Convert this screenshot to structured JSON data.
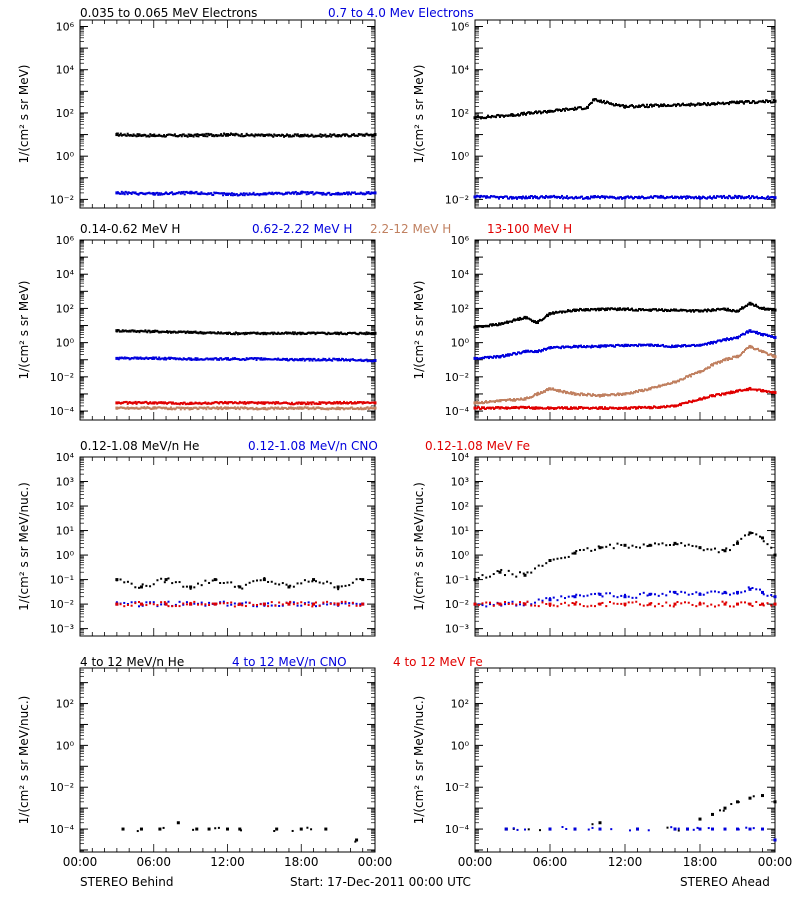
{
  "footer": {
    "left": "STEREO Behind",
    "center": "Start: 17-Dec-2011 00:00 UTC",
    "right": "STEREO Ahead"
  },
  "x_tick_labels": [
    "00:00",
    "06:00",
    "12:00",
    "18:00",
    "00:00"
  ],
  "colors": {
    "black": "#000000",
    "blue": "#0000dd",
    "brown": "#c08060",
    "red": "#e00000"
  },
  "chart_data": [
    {
      "type": "scatter",
      "panel": "electrons",
      "title_entries": [
        {
          "text": "0.035 to 0.065 MeV Electrons",
          "color": "black"
        },
        {
          "text": "0.7 to 4.0 Mev Electrons",
          "color": "blue"
        }
      ],
      "ylabel": "1/(cm² s sr MeV)",
      "yscale": "log",
      "ylim": [
        0.004,
        2000000
      ],
      "ytick_labels": [
        "10^-2",
        "10^0",
        "10^2",
        "10^4",
        "10^6"
      ],
      "xlim_hours": [
        0,
        24
      ],
      "behind": {
        "x_hours": [
          3,
          6,
          9,
          12,
          15,
          18,
          21,
          24
        ],
        "series": [
          {
            "name": "0.035 to 0.065 MeV Electrons",
            "color": "black",
            "values": [
              10,
              9,
              9,
              10,
              9,
              9,
              9,
              10
            ]
          },
          {
            "name": "0.7 to 4.0 Mev Electrons",
            "color": "blue",
            "values": [
              0.02,
              0.018,
              0.02,
              0.017,
              0.018,
              0.02,
              0.018,
              0.02
            ]
          }
        ]
      },
      "ahead": {
        "x_hours": [
          0,
          3,
          6,
          9,
          9.5,
          12,
          15,
          18,
          21,
          24
        ],
        "series": [
          {
            "name": "0.035 to 0.065 MeV Electrons",
            "color": "black",
            "values": [
              60,
              80,
              120,
              180,
              400,
              200,
              220,
              250,
              300,
              350
            ]
          },
          {
            "name": "0.7 to 4.0 Mev Electrons",
            "color": "blue",
            "values": [
              0.013,
              0.012,
              0.013,
              0.012,
              0.013,
              0.012,
              0.013,
              0.012,
              0.013,
              0.012
            ]
          }
        ]
      }
    },
    {
      "type": "scatter",
      "panel": "protons",
      "title_entries": [
        {
          "text": "0.14-0.62 MeV H",
          "color": "black"
        },
        {
          "text": "0.62-2.22 MeV H",
          "color": "blue"
        },
        {
          "text": "2.2-12 MeV H",
          "color": "brown"
        },
        {
          "text": "13-100 MeV H",
          "color": "red"
        }
      ],
      "ylabel": "1/(cm² s sr MeV)",
      "yscale": "log",
      "ylim": [
        3e-05,
        1000000
      ],
      "ytick_labels": [
        "10^-4",
        "10^-2",
        "10^0",
        "10^2",
        "10^4",
        "10^6"
      ],
      "xlim_hours": [
        0,
        24
      ],
      "behind": {
        "x_hours": [
          3,
          6,
          9,
          12,
          15,
          18,
          21,
          24
        ],
        "series": [
          {
            "name": "0.14-0.62 MeV H",
            "color": "black",
            "values": [
              5,
              4.5,
              4,
              3.5,
              3.5,
              3.5,
              3.5,
              3.5
            ]
          },
          {
            "name": "0.62-2.22 MeV H",
            "color": "blue",
            "values": [
              0.12,
              0.12,
              0.11,
              0.11,
              0.11,
              0.1,
              0.1,
              0.09
            ]
          },
          {
            "name": "2.2-12 MeV H",
            "color": "brown",
            "values": [
              0.00015,
              0.00015,
              0.00014,
              0.00015,
              0.00014,
              0.00015,
              0.00014,
              0.00015
            ]
          },
          {
            "name": "13-100 MeV H",
            "color": "red",
            "values": [
              0.0003,
              0.0003,
              0.00028,
              0.0003,
              0.0003,
              0.00028,
              0.0003,
              0.0003
            ]
          }
        ]
      },
      "ahead": {
        "x_hours": [
          0,
          2,
          4,
          5,
          6,
          8,
          10,
          12,
          14,
          16,
          18,
          19,
          20,
          21,
          22,
          23,
          24
        ],
        "series": [
          {
            "name": "0.14-0.62 MeV H",
            "color": "black",
            "values": [
              8,
              12,
              30,
              15,
              50,
              80,
              90,
              90,
              80,
              80,
              70,
              80,
              90,
              70,
              200,
              100,
              80
            ]
          },
          {
            "name": "0.62-2.22 MeV H",
            "color": "blue",
            "values": [
              0.12,
              0.15,
              0.3,
              0.3,
              0.5,
              0.6,
              0.6,
              0.7,
              0.7,
              0.6,
              0.7,
              1,
              1.5,
              2,
              5,
              3,
              2
            ]
          },
          {
            "name": "2.2-12 MeV H",
            "color": "brown",
            "values": [
              0.0003,
              0.0004,
              0.0005,
              0.001,
              0.002,
              0.001,
              0.0008,
              0.001,
              0.002,
              0.005,
              0.02,
              0.05,
              0.1,
              0.15,
              0.6,
              0.3,
              0.15
            ]
          },
          {
            "name": "13-100 MeV H",
            "color": "red",
            "values": [
              0.00015,
              0.00015,
              0.00016,
              0.00015,
              0.00015,
              0.00015,
              0.00015,
              0.00015,
              0.00016,
              0.0002,
              0.0005,
              0.0008,
              0.001,
              0.0015,
              0.002,
              0.0015,
              0.0012
            ]
          }
        ]
      }
    },
    {
      "type": "scatter",
      "panel": "heavy-ions-low",
      "title_entries": [
        {
          "text": "0.12-1.08 MeV/n He",
          "color": "black"
        },
        {
          "text": "0.12-1.08 MeV/n CNO",
          "color": "blue"
        },
        {
          "text": "0.12-1.08 MeV Fe",
          "color": "red"
        }
      ],
      "ylabel": "1/(cm² s sr MeV/nuc.)",
      "yscale": "log",
      "ylim": [
        0.0005,
        10000
      ],
      "ytick_labels": [
        "10^-3",
        "10^-2",
        "10^-1",
        "10^0",
        "10^1",
        "10^2",
        "10^3",
        "10^4"
      ],
      "xlim_hours": [
        0,
        24
      ],
      "behind": {
        "x_hours": [
          3,
          5,
          7,
          9,
          11,
          13,
          15,
          17,
          19,
          21,
          23
        ],
        "series": [
          {
            "name": "0.12-1.08 MeV/n He",
            "color": "black",
            "values": [
              0.1,
              0.05,
              0.1,
              0.05,
              0.1,
              0.05,
              0.1,
              0.05,
              0.1,
              0.05,
              0.1
            ]
          },
          {
            "name": "0.12-1.08 MeV/n CNO",
            "color": "blue",
            "values": [
              0.01,
              0.01,
              0.01,
              0.01,
              0.01,
              0.01,
              0.01,
              0.01,
              0.01,
              0.01,
              0.01
            ]
          },
          {
            "name": "0.12-1.08 MeV Fe",
            "color": "red",
            "values": [
              0.01,
              0.01,
              0.01,
              0.01,
              0.01,
              0.01,
              0.01,
              0.01,
              0.01,
              0.01,
              0.01
            ]
          }
        ]
      },
      "ahead": {
        "x_hours": [
          0,
          2,
          4,
          6,
          8,
          10,
          12,
          14,
          16,
          18,
          20,
          21,
          22,
          23,
          24
        ],
        "series": [
          {
            "name": "0.12-1.08 MeV/n He",
            "color": "black",
            "values": [
              0.1,
              0.2,
              0.15,
              0.6,
              1.2,
              2,
              2.5,
              2.5,
              3,
              2,
              1.5,
              3,
              8,
              5,
              1
            ]
          },
          {
            "name": "0.12-1.08 MeV/n CNO",
            "color": "blue",
            "values": [
              0.01,
              0.01,
              0.01,
              0.015,
              0.02,
              0.025,
              0.02,
              0.025,
              0.03,
              0.025,
              0.03,
              0.03,
              0.04,
              0.03,
              0.02
            ]
          },
          {
            "name": "0.12-1.08 MeV Fe",
            "color": "red",
            "values": [
              0.01,
              0.01,
              0.01,
              0.01,
              0.01,
              0.01,
              0.01,
              0.01,
              0.01,
              0.01,
              0.01,
              0.01,
              0.01,
              0.01,
              0.01
            ]
          }
        ]
      }
    },
    {
      "type": "scatter",
      "panel": "heavy-ions-high",
      "title_entries": [
        {
          "text": "4 to 12 MeV/n He",
          "color": "black"
        },
        {
          "text": "4 to 12 MeV/n CNO",
          "color": "blue"
        },
        {
          "text": "4 to 12 MeV Fe",
          "color": "red"
        }
      ],
      "ylabel": "1/(cm² s sr MeV/nuc.)",
      "yscale": "log",
      "ylim": [
        8e-06,
        5000
      ],
      "ytick_labels": [
        "10^-4",
        "10^-2",
        "10^0",
        "10^2"
      ],
      "xlim_hours": [
        0,
        24
      ],
      "behind": {
        "x_hours": [
          3.5,
          5,
          6.5,
          8,
          9.5,
          10.5,
          12,
          13,
          16,
          18,
          20,
          22.5
        ],
        "series": [
          {
            "name": "4 to 12 MeV/n He",
            "color": "black",
            "values": [
              0.0001,
              0.0001,
              0.0001,
              0.0002,
              0.0001,
              0.0001,
              0.0001,
              0.0001,
              0.0001,
              0.0001,
              0.0001,
              3e-05
            ]
          }
        ]
      },
      "ahead": {
        "x_hours": [
          2.5,
          6,
          8,
          10,
          13,
          16,
          17,
          18,
          19,
          20,
          21,
          22,
          23,
          24
        ],
        "series": [
          {
            "name": "4 to 12 MeV/n He",
            "color": "black",
            "values": [
              0.0001,
              0.0001,
              0.0001,
              0.0002,
              0.0001,
              0.0001,
              0.0001,
              0.0003,
              0.0005,
              0.001,
              0.002,
              0.003,
              0.004,
              0.002
            ]
          },
          {
            "name": "4 to 12 MeV/n CNO",
            "color": "blue",
            "values": [
              0.0001,
              0.0001,
              0.0001,
              0.0001,
              0.0001,
              0.0001,
              0.0001,
              0.0001,
              0.0001,
              0.0001,
              0.0001,
              0.0001,
              0.0001,
              3e-05
            ]
          }
        ]
      }
    }
  ]
}
